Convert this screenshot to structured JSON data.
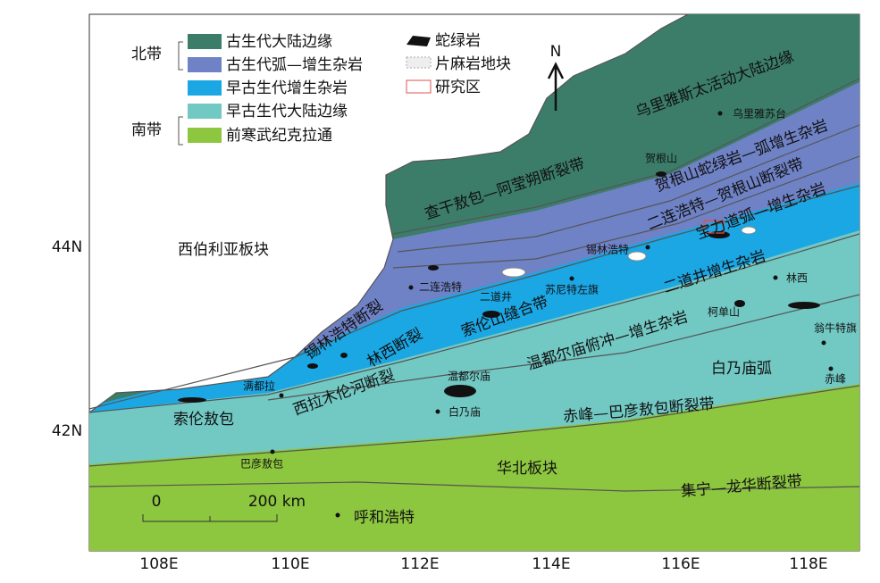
{
  "legend": {
    "groups": [
      "北带",
      "南带"
    ],
    "items": [
      "古生代大陆边缘",
      "古生代弧—增生杂岩",
      "早古生代增生杂岩",
      "早古生代大陆边缘",
      "前寒武纪克拉通"
    ],
    "symbols": [
      "蛇绿岩",
      "片麻岩地块",
      "研究区"
    ]
  },
  "north": "N",
  "latitudes": [
    "44N",
    "42N"
  ],
  "longitudes": [
    "108E",
    "110E",
    "112E",
    "114E",
    "116E",
    "118E"
  ],
  "scale": [
    "0",
    "200 km"
  ],
  "labels": [
    "乌里雅斯太活动大陆边缘",
    "乌里雅苏台",
    "查干敖包—阿莹朔断裂带",
    "贺根山蛇绿岩—弧增生杂岩",
    "贺根山",
    "二连浩特—贺根山断裂带",
    "宝力道弧—增生杂岩",
    "锡林浩特",
    "西伯利亚板块",
    "二连浩特",
    "二道井",
    "苏尼特左旗",
    "二道井增生杂岩",
    "林西",
    "柯单山",
    "索伦山缝合带",
    "锡林浩特断裂",
    "林西断裂",
    "温都尔庙俯冲—增生杂岩",
    "翁牛特旗",
    "白乃庙弧",
    "赤峰",
    "满都拉",
    "温都尔庙",
    "西拉木伦河断裂",
    "索伦敖包",
    "白乃庙",
    "赤峰—巴彦敖包断裂带",
    "巴彦敖包",
    "华北板块",
    "集宁—龙华断裂带",
    "呼和浩特"
  ]
}
